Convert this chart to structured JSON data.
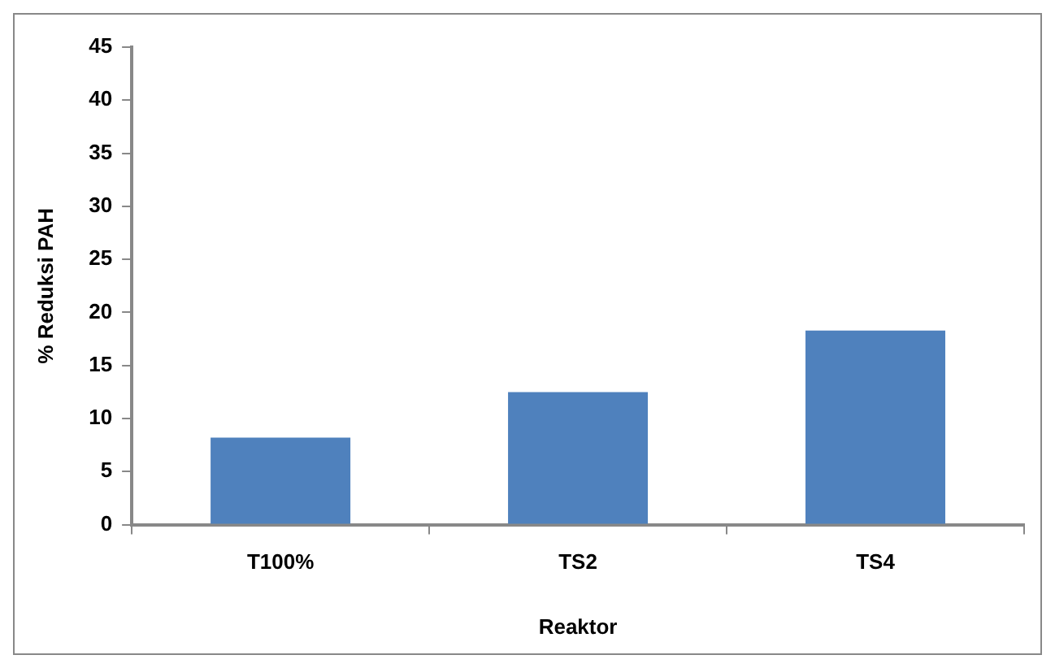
{
  "chart_data": {
    "type": "bar",
    "xlabel": "Reaktor",
    "ylabel": "% Reduksi PAH",
    "categories": [
      "T100%",
      "TS2",
      "TS4"
    ],
    "values": [
      8.2,
      12.5,
      18.3
    ],
    "color": "#4f81bd",
    "ylim": [
      0,
      45
    ],
    "yticks": [
      0,
      5,
      10,
      15,
      20,
      25,
      30,
      35,
      40,
      45
    ],
    "grid": false,
    "legend": false
  }
}
